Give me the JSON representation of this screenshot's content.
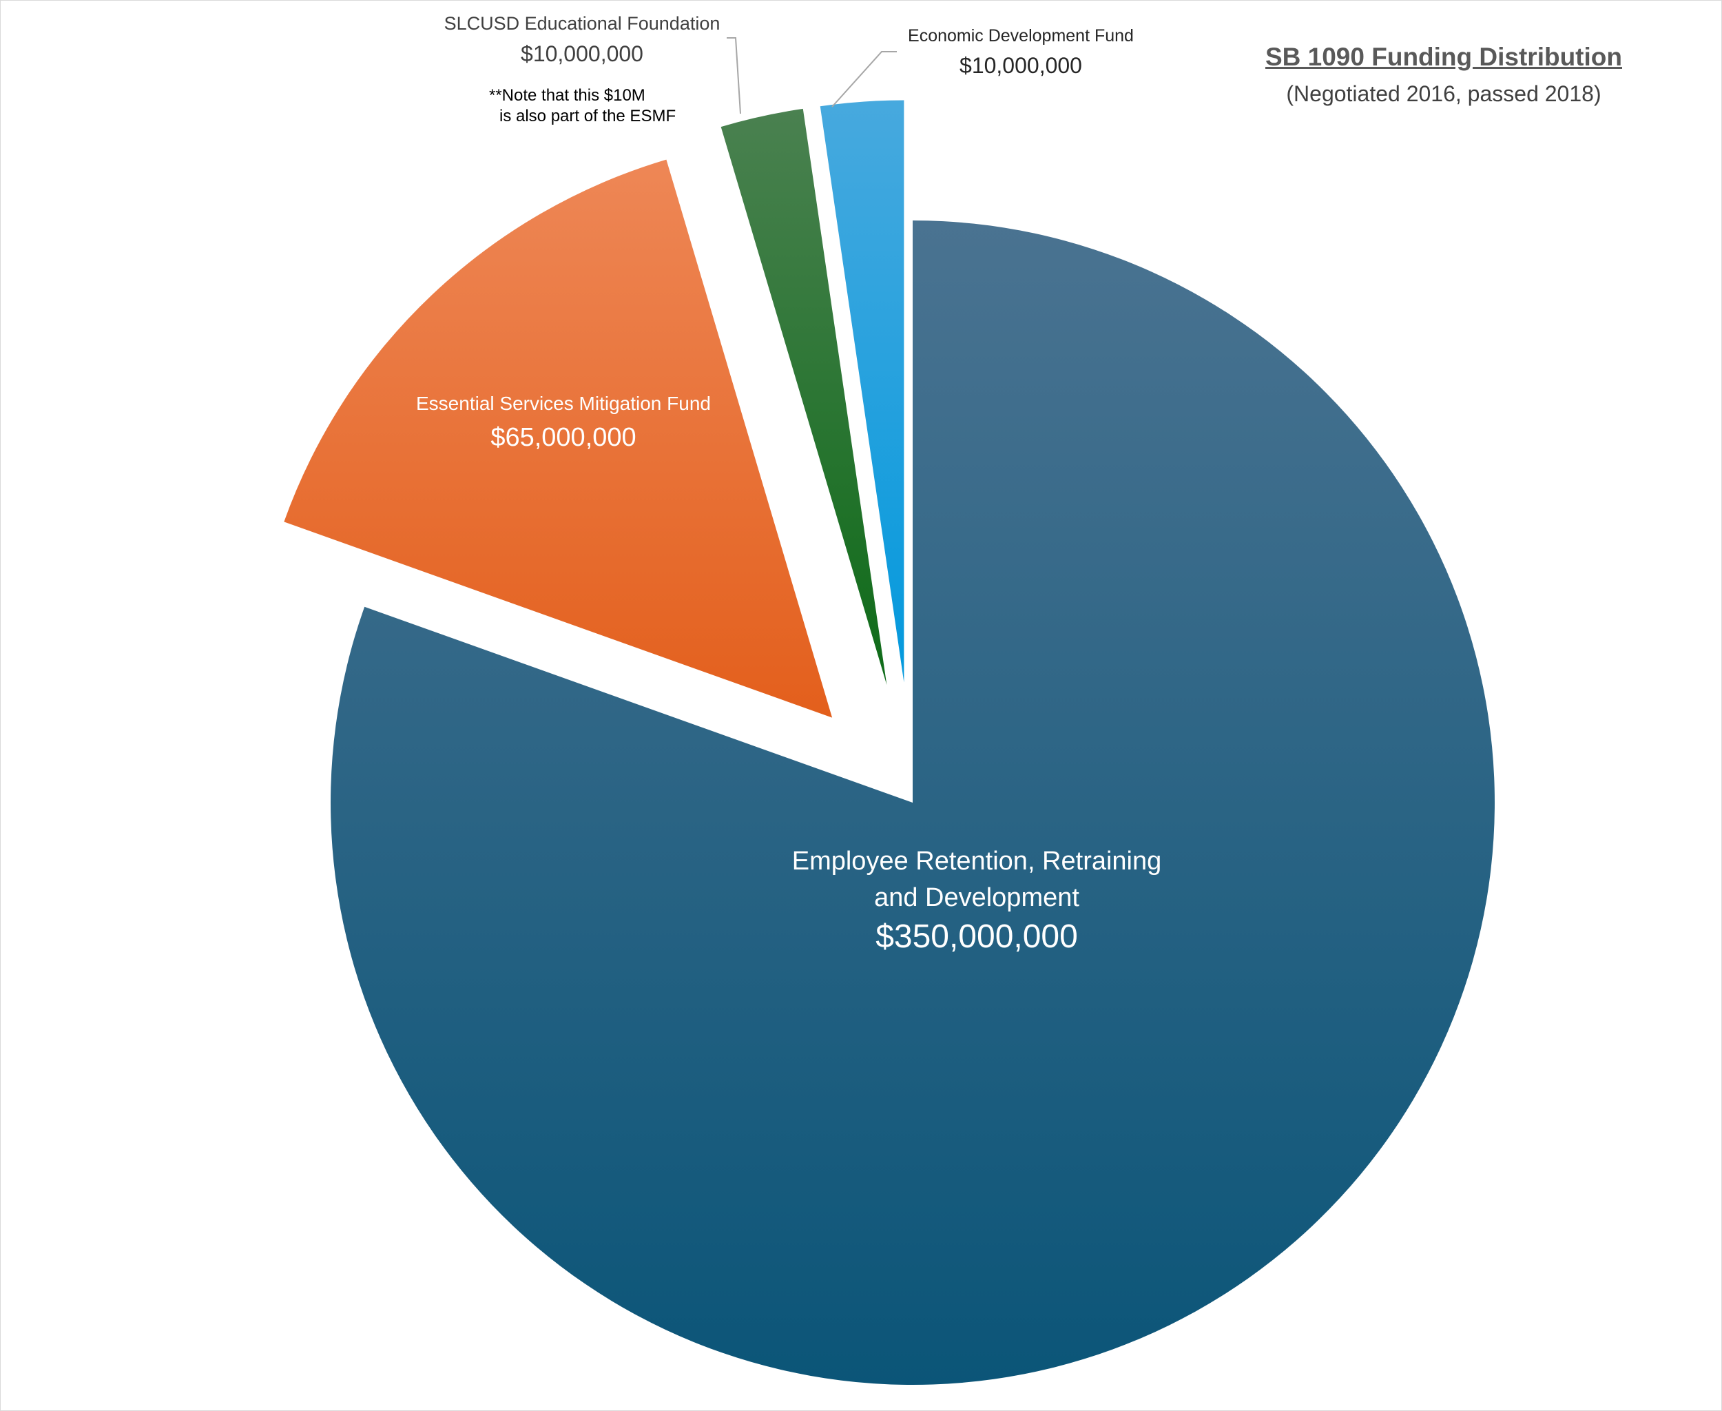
{
  "chart_data": {
    "type": "pie",
    "title": "SB 1090 Funding Distribution",
    "subtitle": "(Negotiated 2016, passed 2018)",
    "slices": [
      {
        "name": "Employee Retention, Retraining and Development",
        "label_lines": [
          "Employee Retention, Retraining",
          "and Development"
        ],
        "value": 350000000,
        "value_label": "$350,000,000",
        "color_top": "#4a7391",
        "color_bottom": "#0b5578",
        "exploded": false
      },
      {
        "name": "Essential Services Mitigation Fund",
        "label_lines": [
          "Essential Services Mitigation Fund"
        ],
        "value": 65000000,
        "value_label": "$65,000,000",
        "color_top": "#ee8756",
        "color_bottom": "#e35f1c",
        "exploded": true
      },
      {
        "name": "SLCUSD Educational Foundation",
        "label_lines": [
          "SLCUSD Educational Foundation"
        ],
        "value": 10000000,
        "value_label": "$10,000,000",
        "note_lines": [
          "**Note that this $10M",
          "is also part of the ESMF"
        ],
        "color_top": "#4a8150",
        "color_bottom": "#0e6b18",
        "exploded": true
      },
      {
        "name": "Economic Development Fund",
        "label_lines": [
          "Economic Development Fund"
        ],
        "value": 10000000,
        "value_label": "$10,000,000",
        "color_top": "#47a9de",
        "color_bottom": "#0399dd",
        "exploded": true
      }
    ]
  }
}
